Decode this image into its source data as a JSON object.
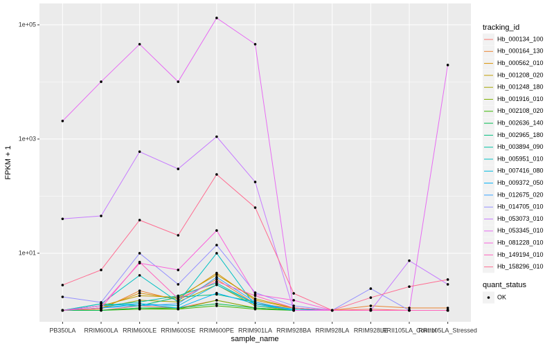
{
  "chart_data": {
    "type": "line",
    "x_label": "sample_name",
    "y_label": "FPKM + 1",
    "categories": [
      "PB350LA",
      "RRIM600LA",
      "RRIM600LE",
      "RRIM600SE",
      "RRIM600PE",
      "RRIM901LA",
      "RRIM928BA",
      "RRIM928LA",
      "RRIM928LE",
      "RRII105LA_Control",
      "RRII105LA_Stressed"
    ],
    "log_scale": true,
    "grid": true,
    "ylim": [
      0.63,
      237000
    ],
    "yticks": [
      {
        "value": 10,
        "label": "1e+01"
      },
      {
        "value": 1000,
        "label": "1e+03"
      },
      {
        "value": 100000,
        "label": "1e+05"
      }
    ],
    "legend_title": "tracking_id",
    "legend_position": "right",
    "point_legend": {
      "title": "quant_status",
      "labels": [
        "OK"
      ],
      "color": "#000000"
    },
    "series": [
      {
        "name": "Hb_000134_100",
        "color": "#F8766D",
        "values": [
          1,
          1,
          1.2,
          1.1,
          1.5,
          1.1,
          1,
          1,
          1.05,
          1,
          1
        ]
      },
      {
        "name": "Hb_000164_130",
        "color": "#EA8331",
        "values": [
          1,
          1.05,
          2.2,
          1.5,
          3.5,
          1.3,
          1.1,
          1,
          1.2,
          1.1,
          1.1
        ]
      },
      {
        "name": "Hb_000562_010",
        "color": "#D89000",
        "values": [
          1,
          1.1,
          2,
          1.6,
          4.5,
          1.5,
          1.1,
          1,
          1,
          1,
          1
        ]
      },
      {
        "name": "Hb_001208_020",
        "color": "#C09B00",
        "values": [
          1,
          1.2,
          1.8,
          1.7,
          4.2,
          1.6,
          1.1,
          1,
          1,
          1,
          1
        ]
      },
      {
        "name": "Hb_001248_180",
        "color": "#A3A500",
        "values": [
          1,
          1.1,
          1.5,
          1.4,
          2.8,
          1.2,
          1,
          1,
          1,
          1,
          1
        ]
      },
      {
        "name": "Hb_001916_010",
        "color": "#7CAE00",
        "values": [
          1,
          1,
          1.1,
          1.05,
          1.5,
          1.1,
          1,
          1,
          1,
          1,
          1
        ]
      },
      {
        "name": "Hb_002108_020",
        "color": "#39B600",
        "values": [
          1,
          1,
          1.05,
          1.05,
          1.2,
          1.05,
          1,
          1,
          1,
          1,
          1
        ]
      },
      {
        "name": "Hb_002636_140",
        "color": "#00BB4E",
        "values": [
          1,
          1,
          1.1,
          1.1,
          1.3,
          1.1,
          1,
          1,
          1,
          1,
          1
        ]
      },
      {
        "name": "Hb_002965_180",
        "color": "#00BF7D",
        "values": [
          1,
          1.3,
          1.2,
          1.7,
          1.9,
          1.4,
          1,
          1,
          1,
          1,
          1
        ]
      },
      {
        "name": "Hb_003894_090",
        "color": "#00C1A3",
        "values": [
          1,
          1.2,
          1.4,
          1.8,
          3,
          1.3,
          1.05,
          1,
          1,
          1,
          1
        ]
      },
      {
        "name": "Hb_005951_010",
        "color": "#00BFC4",
        "values": [
          1,
          1.3,
          4.1,
          1.4,
          10,
          1.2,
          1.05,
          1,
          1,
          1,
          1
        ]
      },
      {
        "name": "Hb_007416_080",
        "color": "#00BAE0",
        "values": [
          1,
          1.1,
          1.3,
          1.2,
          2.8,
          1.3,
          1,
          1,
          1,
          1,
          1
        ]
      },
      {
        "name": "Hb_009372_050",
        "color": "#00B0F6",
        "values": [
          1,
          1.2,
          1.3,
          1.1,
          2,
          1.3,
          1,
          1,
          1,
          1,
          1
        ]
      },
      {
        "name": "Hb_012675_020",
        "color": "#35A2FF",
        "values": [
          1,
          1.1,
          1.2,
          1.3,
          3.8,
          1.4,
          1,
          1,
          1,
          1,
          1
        ]
      },
      {
        "name": "Hb_014705_010",
        "color": "#9590FF",
        "values": [
          1.72,
          1.38,
          10,
          2.85,
          13.9,
          2.04,
          1.2,
          1,
          2.4,
          1,
          1
        ]
      },
      {
        "name": "Hb_053073_010",
        "color": "#C77CFF",
        "values": [
          40,
          45,
          600,
          300,
          1100,
          177,
          1,
          1,
          1,
          7.4,
          2.85
        ]
      },
      {
        "name": "Hb_053345_010",
        "color": "#E76BF3",
        "values": [
          2070,
          10100,
          45800,
          10100,
          132000,
          45800,
          1,
          1,
          1,
          1,
          19800
        ]
      },
      {
        "name": "Hb_081228_010",
        "color": "#FA62DB",
        "values": [
          1,
          1.2,
          6.7,
          5.1,
          25,
          1.9,
          1.5,
          1,
          1,
          1,
          1
        ]
      },
      {
        "name": "Hb_149194_010",
        "color": "#FF62BC",
        "values": [
          1,
          1.1,
          7,
          1.6,
          3.2,
          1.8,
          1.1,
          1,
          1,
          1,
          1
        ]
      },
      {
        "name": "Hb_158296_010",
        "color": "#FF6C91",
        "values": [
          2.77,
          5.1,
          38,
          20.6,
          240,
          63,
          1.98,
          1,
          1.67,
          2.6,
          3.46
        ]
      }
    ]
  }
}
